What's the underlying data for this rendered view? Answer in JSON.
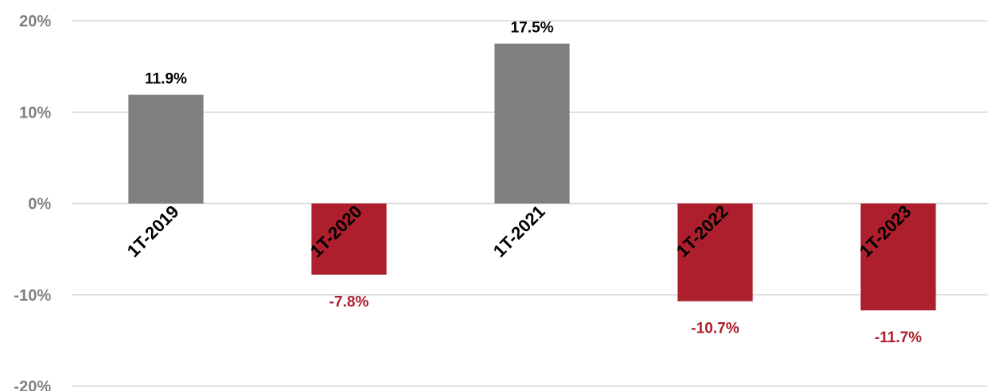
{
  "chart_data": {
    "type": "bar",
    "title": "",
    "xlabel": "",
    "ylabel": "",
    "categories": [
      "1T-2019",
      "1T-2020",
      "1T-2021",
      "1T-2022",
      "1T-2023"
    ],
    "values": [
      11.9,
      -7.8,
      17.5,
      -10.7,
      -11.7
    ],
    "data_labels": [
      "11.9%",
      "-7.8%",
      "17.5%",
      "-10.7%",
      "-11.7%"
    ],
    "ylim": [
      -20,
      20
    ],
    "yticks": [
      20,
      10,
      0,
      -10,
      -20
    ],
    "ytick_labels": [
      "20%",
      "10%",
      "0%",
      "-10%",
      "-20%"
    ],
    "grid": true,
    "legend": "none",
    "colors": {
      "positive": "#7f7f7f",
      "negative": "#ad1f2d",
      "positive_label": "#000000",
      "negative_label": "#ad1f2d",
      "gridline": "#d9d9d9",
      "axis_text": "#7f7f7f"
    }
  }
}
